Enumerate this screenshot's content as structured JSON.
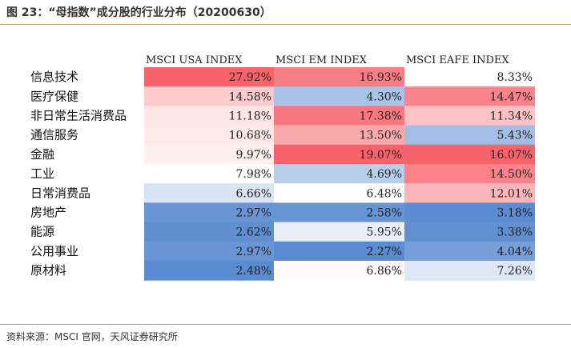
{
  "title": "图 23：“母指数”成分股的行业分布（20200630）",
  "source": "资料来源：MSCI 官网，天风证券研究所",
  "chart_data": {
    "type": "heatmap",
    "columns": [
      "MSCI USA INDEX",
      "MSCI EM INDEX",
      "MSCI EAFE INDEX"
    ],
    "rows": [
      "信息技术",
      "医疗保健",
      "非日常生活消费品",
      "通信服务",
      "金融",
      "工业",
      "日常消费品",
      "房地产",
      "能源",
      "公用事业",
      "原材料"
    ],
    "values": [
      [
        27.92,
        16.93,
        8.33
      ],
      [
        14.58,
        4.3,
        14.47
      ],
      [
        11.18,
        17.38,
        11.34
      ],
      [
        10.68,
        13.5,
        5.43
      ],
      [
        9.97,
        19.07,
        16.07
      ],
      [
        7.98,
        4.69,
        14.5
      ],
      [
        6.66,
        6.48,
        12.01
      ],
      [
        2.97,
        2.58,
        3.18
      ],
      [
        2.62,
        5.95,
        3.38
      ],
      [
        2.97,
        2.27,
        4.04
      ],
      [
        2.48,
        6.86,
        7.26
      ]
    ],
    "labels": [
      [
        "27.92%",
        "16.93%",
        "8.33%"
      ],
      [
        "14.58%",
        "4.30%",
        "14.47%"
      ],
      [
        "11.18%",
        "17.38%",
        "11.34%"
      ],
      [
        "10.68%",
        "13.50%",
        "5.43%"
      ],
      [
        "9.97%",
        "19.07%",
        "16.07%"
      ],
      [
        "7.98%",
        "4.69%",
        "14.50%"
      ],
      [
        "6.66%",
        "6.48%",
        "12.01%"
      ],
      [
        "2.97%",
        "2.58%",
        "3.18%"
      ],
      [
        "2.62%",
        "5.95%",
        "3.38%"
      ],
      [
        "2.97%",
        "2.27%",
        "4.04%"
      ],
      [
        "2.48%",
        "6.86%",
        "7.26%"
      ]
    ],
    "color_scale": {
      "low": "#5b8bd0",
      "mid": "#ffffff",
      "high": "#f8636b"
    }
  }
}
